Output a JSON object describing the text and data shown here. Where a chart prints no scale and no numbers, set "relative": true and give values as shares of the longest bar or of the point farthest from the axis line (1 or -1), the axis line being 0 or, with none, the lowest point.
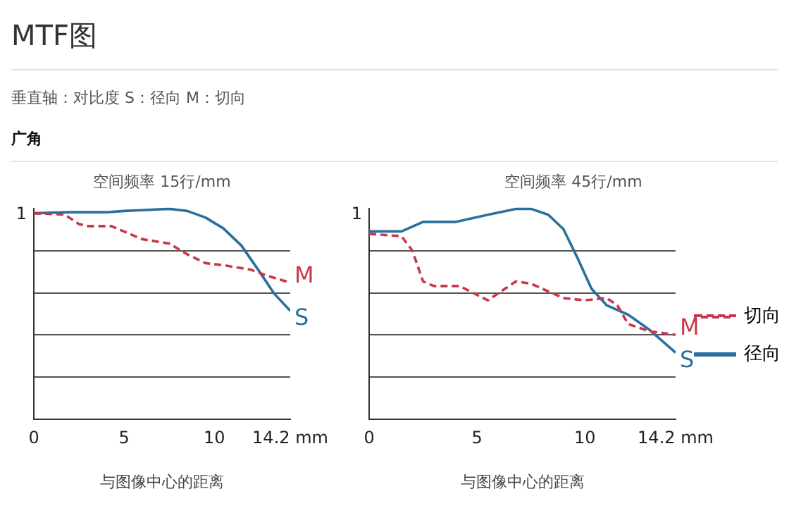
{
  "chart_data": [
    {
      "type": "line",
      "title": "空间频率 15行/mm",
      "xlabel": "与图像中心的距离",
      "relative": true,
      "annotations": [
        "MTF图",
        "垂直轴：对比度   S：径向   M：切向",
        "广角",
        "M",
        "S",
        "1"
      ],
      "series": [
        {
          "color": "#c8384c",
          "line_style": "dashed",
          "x": [
            0,
            1.7,
            2.5,
            3,
            4.3,
            5,
            6,
            7.5,
            8.5,
            9.5,
            10.5,
            12,
            13,
            14.2
          ],
          "values": [
            0.979,
            0.973,
            0.928,
            0.918,
            0.918,
            0.892,
            0.856,
            0.835,
            0.784,
            0.742,
            0.732,
            0.711,
            0.68,
            0.649
          ]
        },
        {
          "color": "#2b6f9e",
          "line_style": "solid",
          "x": [
            0,
            2,
            4,
            5,
            6,
            7.5,
            8.5,
            9.5,
            10.5,
            11.5,
            12.5,
            13.3,
            14.2
          ],
          "values": [
            0.979,
            0.984,
            0.984,
            0.99,
            0.994,
            1,
            0.99,
            0.959,
            0.907,
            0.825,
            0.701,
            0.598,
            0.515
          ]
        }
      ],
      "xlim": [
        0,
        14.2
      ],
      "xticks": [
        0,
        5,
        10,
        {
          "value": 14.2,
          "label": "14.2 mm"
        }
      ],
      "grid": "y",
      "legend": false,
      "marker": "none"
    },
    {
      "type": "line",
      "title": "空间频率 45行/mm",
      "xlabel": "与图像中心的距离",
      "relative": true,
      "annotations": [
        "M",
        "S",
        "1"
      ],
      "series": [
        {
          "name": "切向",
          "color": "#c8384c",
          "line_style": "dashed",
          "x": [
            0,
            1.5,
            2,
            2.5,
            3,
            4.2,
            5.5,
            6.8,
            7.5,
            9,
            10,
            11,
            11.5,
            12,
            13,
            14.2
          ],
          "values": [
            0.881,
            0.87,
            0.802,
            0.655,
            0.633,
            0.633,
            0.565,
            0.655,
            0.644,
            0.576,
            0.565,
            0.576,
            0.542,
            0.452,
            0.418,
            0.401
          ]
        },
        {
          "name": "径向",
          "color": "#2b6f9e",
          "line_style": "solid",
          "x": [
            0,
            1.5,
            2.5,
            4,
            5.5,
            6.8,
            7.5,
            8.3,
            9,
            9.7,
            10.3,
            11,
            12,
            13,
            14.2
          ],
          "values": [
            0.893,
            0.893,
            0.938,
            0.938,
            0.972,
            1,
            1,
            0.972,
            0.904,
            0.757,
            0.621,
            0.542,
            0.497,
            0.424,
            0.316
          ]
        }
      ],
      "xlim": [
        0,
        14.2
      ],
      "xticks": [
        0,
        5,
        10,
        {
          "value": 14.2,
          "label": "14.2 mm"
        }
      ],
      "grid": "y",
      "legend": "right",
      "marker": "none"
    }
  ]
}
